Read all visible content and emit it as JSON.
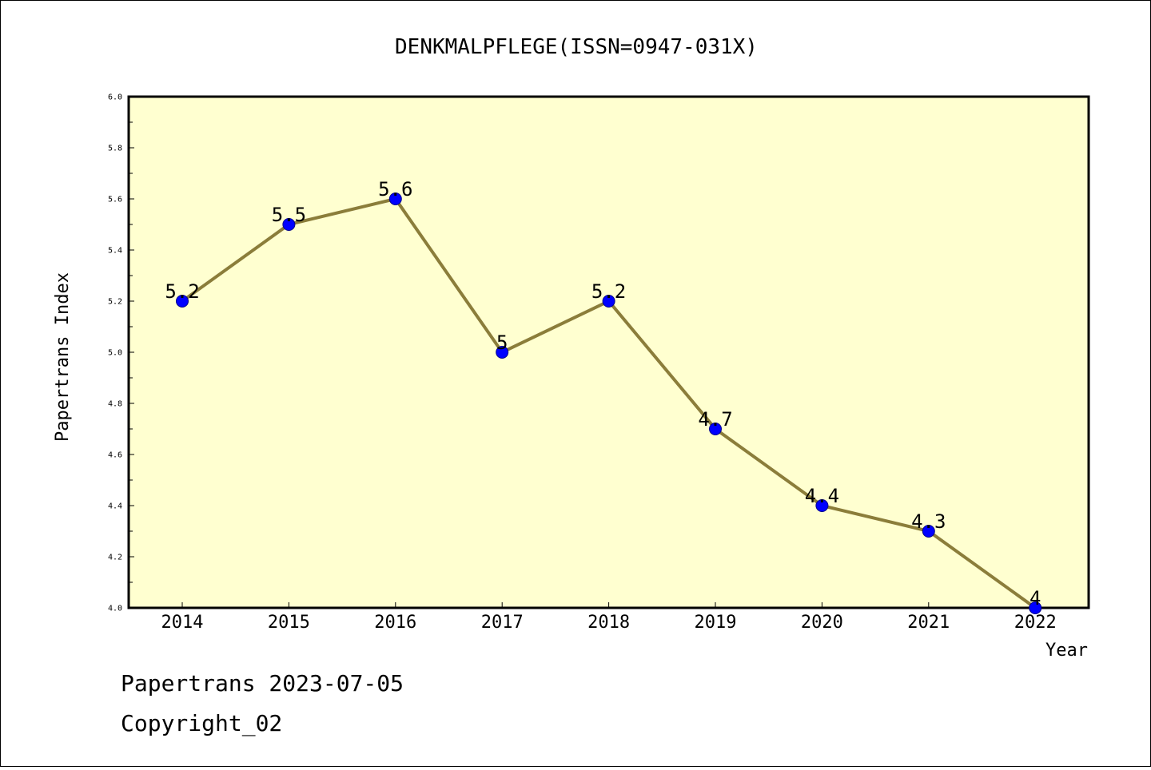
{
  "chart_data": {
    "type": "line",
    "title": "DENKMALPFLEGE(ISSN=0947-031X)",
    "xlabel": "Year",
    "ylabel": "Papertrans Index",
    "x": [
      "2014",
      "2015",
      "2016",
      "2017",
      "2018",
      "2019",
      "2020",
      "2021",
      "2022"
    ],
    "series": [
      {
        "values": [
          5.2,
          5.5,
          5.6,
          5.0,
          5.2,
          4.7,
          4.4,
          4.3,
          4.0
        ]
      }
    ],
    "data_labels": [
      "5.2",
      "5.5",
      "5.6",
      "5",
      "5.2",
      "4.7",
      "4.4",
      "4.3",
      "4"
    ],
    "ylim": [
      4.0,
      6.0
    ],
    "yticks": [
      "4.0",
      "4.2",
      "4.4",
      "4.6",
      "4.8",
      "5.0",
      "5.2",
      "5.4",
      "5.6",
      "5.8",
      "6.0"
    ],
    "grid": false,
    "colors": {
      "plot_background": "#ffffd0",
      "line": "#8b7d3a",
      "marker": "#0000ff"
    }
  },
  "footer": {
    "line1": "Papertrans 2023-07-05",
    "line2": "Copyright_02"
  }
}
